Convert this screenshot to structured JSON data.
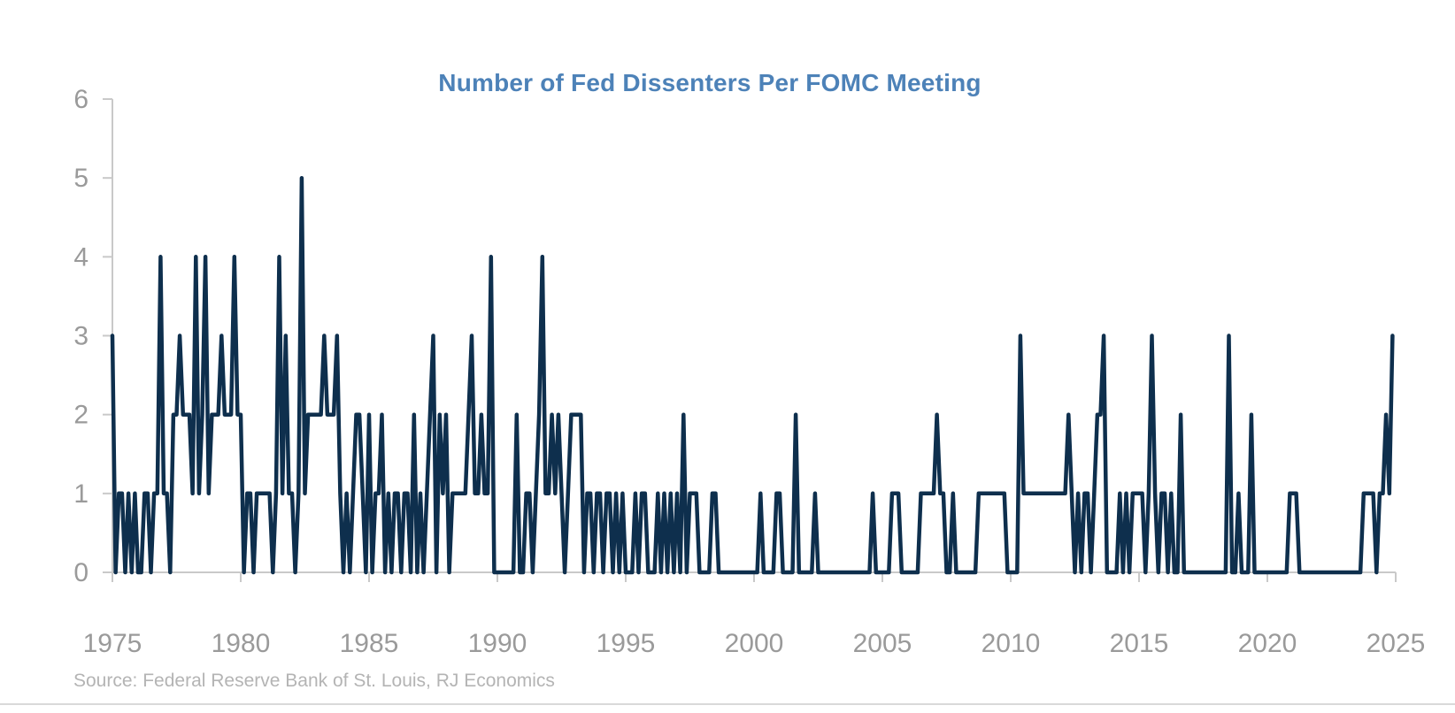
{
  "title": "Number of Fed Dissenters Per FOMC Meeting",
  "source": "Source: Federal Reserve Bank of St. Louis, RJ Economics",
  "colors": {
    "line": "#0e2f4d",
    "title": "#4d82b8",
    "axis": "#c9c9c9",
    "tick_label": "#9a9a9a",
    "source": "#b4b4b4",
    "bottom_rule": "#d9d9d9"
  },
  "chart_data": {
    "type": "line",
    "title": "Number of Fed Dissenters Per FOMC Meeting",
    "xlabel": "",
    "ylabel": "",
    "ylim": [
      0,
      6
    ],
    "xlim": [
      1975,
      2025.7
    ],
    "grid": false,
    "legend": false,
    "y_tick_labels": [
      "0",
      "1",
      "2",
      "3",
      "4",
      "5",
      "6"
    ],
    "x_tick_labels": [
      "1975",
      "1980",
      "1985",
      "1990",
      "1995",
      "2000",
      "2005",
      "2010",
      "2015",
      "2020",
      "2025"
    ],
    "x_tick_years": [
      1975,
      1980,
      1985,
      1990,
      1995,
      2000,
      2005,
      2010,
      2015,
      2020,
      2025
    ],
    "meetings_per_year": 8,
    "series": [
      {
        "name": "Dissenters per FOMC meeting",
        "values_by_year": {
          "1975": [
            3,
            0,
            1,
            1,
            0,
            1,
            0,
            1
          ],
          "1976": [
            0,
            0,
            1,
            1,
            0,
            1,
            1,
            4
          ],
          "1977": [
            1,
            1,
            0,
            2,
            2,
            3,
            2,
            2
          ],
          "1978": [
            2,
            1,
            4,
            1,
            2,
            4,
            1,
            2
          ],
          "1979": [
            2,
            2,
            3,
            2,
            2,
            2,
            4,
            2
          ],
          "1980": [
            2,
            0,
            1,
            1,
            0,
            1,
            1,
            1
          ],
          "1981": [
            1,
            1,
            0,
            1,
            4,
            1,
            3,
            1
          ],
          "1982": [
            1,
            0,
            1,
            5,
            1,
            2,
            2,
            2
          ],
          "1983": [
            2,
            2,
            3,
            2,
            2,
            2,
            3,
            1
          ],
          "1984": [
            0,
            1,
            0,
            1,
            2,
            2,
            1,
            0
          ],
          "1985": [
            2,
            0,
            1,
            1,
            2,
            0,
            1,
            0
          ],
          "1986": [
            1,
            1,
            0,
            1,
            1,
            0,
            2,
            0
          ],
          "1987": [
            1,
            0,
            1,
            2,
            3,
            0,
            2,
            1
          ],
          "1988": [
            2,
            0,
            1,
            1,
            1,
            1,
            1,
            2
          ],
          "1989": [
            3,
            1,
            1,
            2,
            1,
            1,
            4,
            0
          ],
          "1990": [
            0,
            0,
            0,
            0,
            0,
            0,
            2,
            0
          ],
          "1991": [
            0,
            1,
            1,
            0,
            1,
            2,
            4,
            1
          ],
          "1992": [
            1,
            2,
            1,
            2,
            1,
            0,
            1,
            2
          ],
          "1993": [
            2,
            2,
            2,
            0,
            1,
            1,
            0,
            1
          ],
          "1994": [
            1,
            0,
            1,
            1,
            0,
            1,
            0,
            1
          ],
          "1995": [
            0,
            0,
            0,
            1,
            0,
            1,
            1,
            0
          ],
          "1996": [
            0,
            0,
            1,
            0,
            1,
            0,
            1,
            0
          ],
          "1997": [
            1,
            0,
            2,
            0,
            1,
            1,
            1,
            0
          ],
          "1998": [
            0,
            0,
            0,
            1,
            1,
            0,
            0,
            0
          ],
          "1999": [
            0,
            0,
            0,
            0,
            0,
            0,
            0,
            0
          ],
          "2000": [
            0,
            0,
            1,
            0,
            0,
            0,
            0,
            1
          ],
          "2001": [
            1,
            0,
            0,
            0,
            0,
            2,
            0,
            0
          ],
          "2002": [
            0,
            0,
            0,
            1,
            0,
            0,
            0,
            0
          ],
          "2003": [
            0,
            0,
            0,
            0,
            0,
            0,
            0,
            0
          ],
          "2004": [
            0,
            0,
            0,
            0,
            0,
            1,
            0,
            0
          ],
          "2005": [
            0,
            0,
            0,
            1,
            1,
            1,
            0,
            0
          ],
          "2006": [
            0,
            0,
            0,
            0,
            1,
            1,
            1,
            1
          ],
          "2007": [
            1,
            2,
            1,
            1,
            0,
            0,
            1,
            0
          ],
          "2008": [
            0,
            0,
            0,
            0,
            0,
            0,
            1,
            1
          ],
          "2009": [
            1,
            1,
            1,
            1,
            1,
            1,
            1,
            0
          ],
          "2010": [
            0,
            0,
            0,
            3,
            1,
            1,
            1,
            1
          ],
          "2011": [
            1,
            1,
            1,
            1,
            1,
            1,
            1,
            1
          ],
          "2012": [
            1,
            1,
            2,
            1,
            0,
            1,
            0,
            1
          ],
          "2013": [
            1,
            0,
            1,
            2,
            2,
            3,
            0,
            0
          ],
          "2014": [
            0,
            0,
            1,
            0,
            1,
            0,
            1,
            1
          ],
          "2015": [
            1,
            1,
            0,
            1,
            3,
            1,
            0,
            1
          ],
          "2016": [
            1,
            0,
            1,
            0,
            0,
            2,
            0,
            0
          ],
          "2017": [
            0,
            0,
            0,
            0,
            0,
            0,
            0,
            0
          ],
          "2018": [
            0,
            0,
            0,
            0,
            3,
            0,
            0,
            1
          ],
          "2019": [
            0,
            0,
            0,
            2,
            0,
            0,
            0,
            0
          ],
          "2020": [
            0,
            0,
            0,
            0,
            0,
            0,
            0,
            1
          ],
          "2021": [
            1,
            1,
            0,
            0,
            0,
            0,
            0,
            0
          ],
          "2022": [
            0,
            0,
            0,
            0,
            0,
            0,
            0,
            0
          ],
          "2023": [
            0,
            0,
            0,
            0,
            0,
            0,
            1,
            1
          ],
          "2024": [
            1,
            1,
            0,
            1,
            1,
            2,
            1,
            3
          ]
        }
      }
    ]
  }
}
